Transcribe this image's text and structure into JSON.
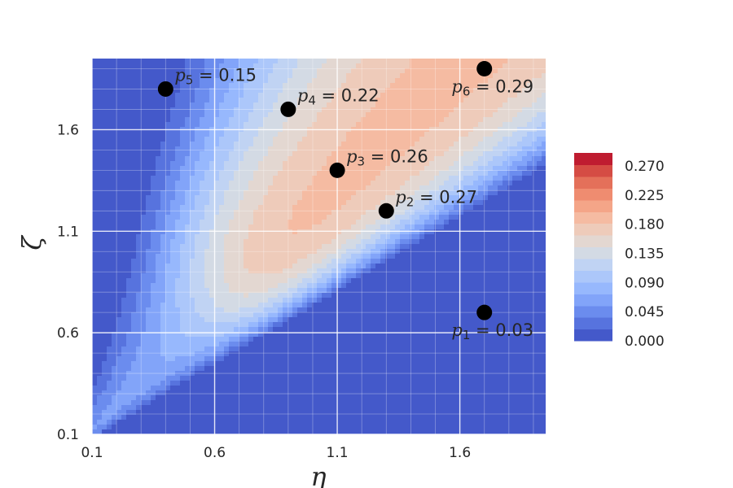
{
  "chart_data": {
    "type": "heatmap",
    "style": "filled contour",
    "colormap": "coolwarm",
    "title": "",
    "xlabel": "η",
    "ylabel": "ζ",
    "xlim": [
      0.1,
      1.95
    ],
    "ylim": [
      0.1,
      1.95
    ],
    "x_ticks": [
      "0.1",
      "0.6",
      "1.1",
      "1.6"
    ],
    "y_ticks": [
      "0.1",
      "0.6",
      "1.1",
      "1.6"
    ],
    "grid": true,
    "colorbar": {
      "min": 0.0,
      "max": 0.29,
      "levels": 16,
      "ticks": [
        "0.000",
        "0.045",
        "0.090",
        "0.135",
        "0.180",
        "0.225",
        "0.270"
      ]
    },
    "points": [
      {
        "name": "p1",
        "sub": "1",
        "value": "0.03",
        "eta": 1.7,
        "zeta": 0.7,
        "label_side": "below"
      },
      {
        "name": "p2",
        "sub": "2",
        "value": "0.27",
        "eta": 1.3,
        "zeta": 1.2,
        "label_side": "above-right"
      },
      {
        "name": "p3",
        "sub": "3",
        "value": "0.26",
        "eta": 1.1,
        "zeta": 1.4,
        "label_side": "above-right"
      },
      {
        "name": "p4",
        "sub": "4",
        "value": "0.22",
        "eta": 0.9,
        "zeta": 1.7,
        "label_side": "above-right"
      },
      {
        "name": "p5",
        "sub": "5",
        "value": "0.15",
        "eta": 0.4,
        "zeta": 1.8,
        "label_side": "above-right"
      },
      {
        "name": "p6",
        "sub": "6",
        "value": "0.29",
        "eta": 1.7,
        "zeta": 1.9,
        "label_side": "below"
      }
    ]
  }
}
